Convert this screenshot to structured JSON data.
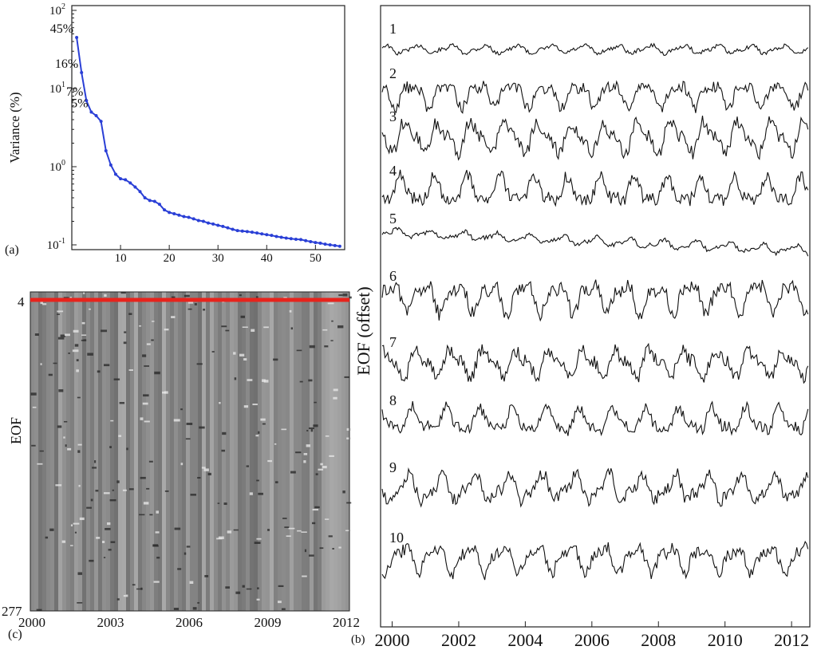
{
  "chart_data": [
    {
      "panel": "(a)",
      "type": "line",
      "scale_y": "log",
      "ylabel": "Variance (%)",
      "xlabel": "",
      "xlim": [
        0,
        56
      ],
      "ylim": [
        0.1,
        100
      ],
      "xticks": [
        10,
        20,
        30,
        40,
        50
      ],
      "yticks": [
        {
          "label": "10",
          "exp": "-1"
        },
        {
          "label": "10",
          "exp": "0"
        },
        {
          "label": "10",
          "exp": "1"
        },
        {
          "label": "10",
          "exp": "2"
        }
      ],
      "color": "#2a3fd6",
      "annotations": [
        {
          "text": "45%",
          "x": 1,
          "y": 45
        },
        {
          "text": "16%",
          "x": 2,
          "y": 16
        },
        {
          "text": "7%",
          "x": 3,
          "y": 7
        },
        {
          "text": "5%",
          "x": 4,
          "y": 5
        }
      ],
      "x": [
        1,
        2,
        3,
        4,
        5,
        6,
        7,
        8,
        9,
        10,
        11,
        12,
        13,
        14,
        15,
        16,
        17,
        18,
        19,
        20,
        21,
        22,
        23,
        24,
        25,
        26,
        27,
        28,
        29,
        30,
        31,
        32,
        33,
        34,
        35,
        36,
        37,
        38,
        39,
        40,
        41,
        42,
        43,
        44,
        45,
        46,
        47,
        48,
        49,
        50,
        51,
        52,
        53,
        54,
        55
      ],
      "y": [
        45,
        16,
        7,
        5,
        4.5,
        3.8,
        1.6,
        1.05,
        0.8,
        0.7,
        0.68,
        0.62,
        0.55,
        0.48,
        0.4,
        0.37,
        0.36,
        0.33,
        0.28,
        0.26,
        0.25,
        0.24,
        0.23,
        0.225,
        0.215,
        0.205,
        0.2,
        0.19,
        0.185,
        0.178,
        0.172,
        0.165,
        0.158,
        0.152,
        0.15,
        0.148,
        0.145,
        0.142,
        0.138,
        0.135,
        0.132,
        0.128,
        0.125,
        0.122,
        0.12,
        0.118,
        0.117,
        0.113,
        0.11,
        0.107,
        0.105,
        0.102,
        0.1,
        0.098,
        0.096
      ]
    },
    {
      "panel": "(b)",
      "type": "line",
      "ylabel": "EOF (offset)",
      "xlim": [
        1999.7,
        2012.5
      ],
      "xticks": [
        "2000",
        "2002",
        "2004",
        "2006",
        "2008",
        "2010",
        "2012"
      ],
      "series_labels": [
        "1",
        "2",
        "3",
        "4",
        "5",
        "6",
        "7",
        "8",
        "9",
        "10"
      ],
      "label_color": "#e8231c"
    },
    {
      "panel": "(c)",
      "type": "heatmap",
      "ylabel": "EOF",
      "xticks": [
        "2000",
        "2003",
        "2006",
        "2009",
        "2012"
      ],
      "yticks": [
        "4",
        "277"
      ],
      "highlight_row": "4",
      "highlight_color": "#e8231c"
    }
  ]
}
